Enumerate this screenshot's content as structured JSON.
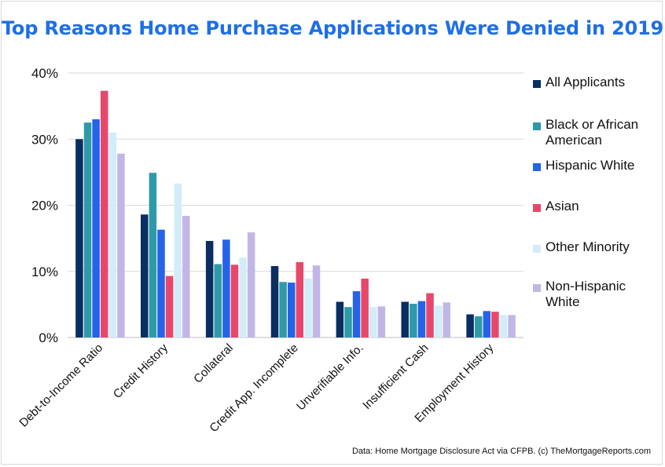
{
  "chart_data": {
    "type": "bar",
    "title": "Top Reasons Home Purchase Applications Were Denied in 2019",
    "xlabel": "",
    "ylabel": "",
    "ylim": [
      0,
      40
    ],
    "yticks": [
      "0%",
      "10%",
      "20%",
      "30%",
      "40%"
    ],
    "ytick_values": [
      0,
      10,
      20,
      30,
      40
    ],
    "grid": true,
    "legend_position": "right",
    "categories": [
      "Debt-to-Income Ratio",
      "Credit History",
      "Collateral",
      "Credit App. Incomplete",
      "Unverifiable Info.",
      "Insufficient Cash",
      "Employment History"
    ],
    "series": [
      {
        "name": "All Applicants",
        "color": "#0a2d62",
        "values": [
          30.0,
          18.6,
          14.6,
          10.8,
          5.4,
          5.4,
          3.5
        ]
      },
      {
        "name": "Black or African American",
        "color": "#2e9aa8",
        "values": [
          32.5,
          24.9,
          11.1,
          8.4,
          4.6,
          5.1,
          3.2
        ]
      },
      {
        "name": "Hispanic White",
        "color": "#2563e8",
        "values": [
          33.0,
          16.3,
          14.8,
          8.3,
          7.0,
          5.5,
          4.0
        ]
      },
      {
        "name": "Asian",
        "color": "#e8476a",
        "values": [
          37.3,
          9.3,
          11.0,
          11.4,
          8.9,
          6.7,
          3.9
        ]
      },
      {
        "name": "Other Minority",
        "color": "#d3ecfa",
        "values": [
          31.0,
          23.3,
          12.1,
          8.9,
          4.6,
          4.8,
          3.4
        ]
      },
      {
        "name": "Non-Hispanic White",
        "color": "#c2b6e6",
        "values": [
          27.8,
          18.4,
          15.9,
          10.9,
          4.7,
          5.3,
          3.4
        ]
      }
    ]
  },
  "source_note": "Data: Home Mortgage Disclosure Act via CFPB. (c) TheMortgageReports.com"
}
